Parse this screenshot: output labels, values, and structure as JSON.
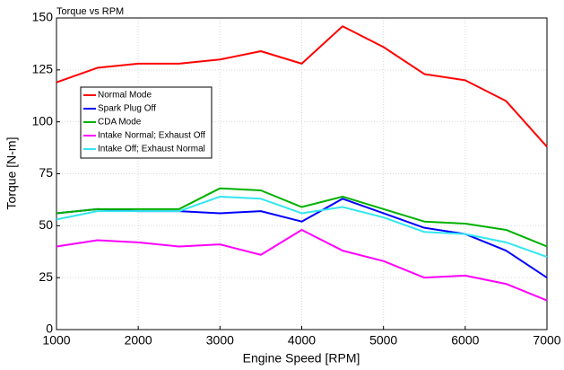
{
  "chart_data": {
    "type": "line",
    "title": "Torque vs RPM",
    "x_label": "Engine Speed [RPM]",
    "y_label": "Torque [N-m]",
    "x": [
      1000,
      1500,
      2000,
      2500,
      3000,
      3500,
      4000,
      4500,
      5000,
      5500,
      6000,
      6500,
      7000
    ],
    "series": [
      {
        "name": "Normal Mode",
        "color": "#ff0000",
        "values": [
          119,
          126,
          128,
          128,
          130,
          134,
          128,
          146,
          136,
          123,
          120,
          110,
          88
        ]
      },
      {
        "name": "Spark Plug Off",
        "color": "#0000ff",
        "values": [
          56,
          58,
          57,
          57,
          56,
          57,
          52,
          63,
          56,
          49,
          46,
          38,
          25
        ]
      },
      {
        "name": "CDA Mode",
        "color": "#00b000",
        "values": [
          56,
          58,
          58,
          58,
          68,
          67,
          59,
          64,
          58,
          52,
          51,
          48,
          40
        ]
      },
      {
        "name": "Intake Normal; Exhaust Off",
        "color": "#ff00ff",
        "values": [
          40,
          43,
          42,
          40,
          41,
          36,
          48,
          38,
          33,
          25,
          26,
          22,
          14
        ]
      },
      {
        "name": "Intake Off; Exhaust Normal",
        "color": "#33e6f0",
        "values": [
          53,
          57,
          57,
          57,
          64,
          63,
          56,
          59,
          54,
          47,
          46,
          42,
          35
        ]
      }
    ],
    "xlim": [
      1000,
      7000
    ],
    "xticks": [
      1000,
      2000,
      3000,
      4000,
      5000,
      6000,
      7000
    ],
    "ylim": [
      0,
      150
    ],
    "yticks": [
      0,
      25,
      50,
      75,
      100,
      125,
      150
    ],
    "grid": true,
    "legend": "upper left"
  }
}
